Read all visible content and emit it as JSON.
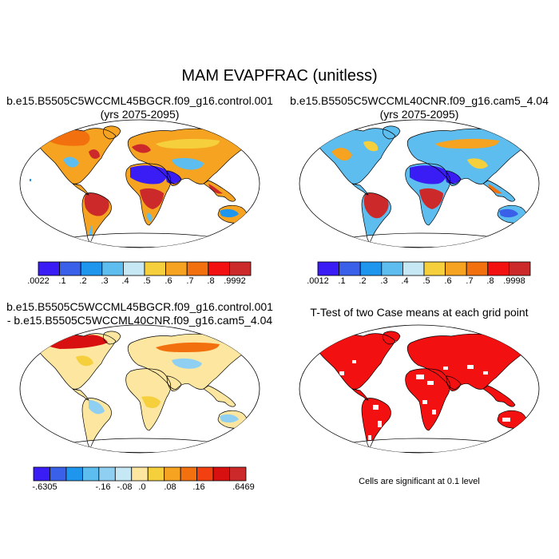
{
  "title": "MAM EVAPFRAC (unitless)",
  "panels": [
    {
      "title_line1": "b.e15.B5505C5WCCML45BGCR.f09_g16.control.001",
      "title_line2": "(yrs 2075-2095)",
      "colorbar": {
        "colors": [
          "#3a1cf4",
          "#3a5fe8",
          "#1e96ee",
          "#5cbdee",
          "#c5e8f4",
          "#f5cf3c",
          "#f5a321",
          "#f2710e",
          "#f21010",
          "#cc2a2a"
        ],
        "labels": [
          ".0022",
          ".1",
          ".2",
          ".3",
          ".4",
          ".5",
          ".6",
          ".7",
          ".8",
          ".9992"
        ]
      }
    },
    {
      "title_line1": "b.e15.B5505C5WCCML40CNR.f09_g16.cam5_4.04",
      "title_line2": "(yrs 2075-2095)",
      "colorbar": {
        "colors": [
          "#3a1cf4",
          "#3a5fe8",
          "#1e96ee",
          "#5cbdee",
          "#c5e8f4",
          "#f5cf3c",
          "#f5a321",
          "#f2710e",
          "#f21010",
          "#cc2a2a"
        ],
        "labels": [
          ".0012",
          ".1",
          ".2",
          ".3",
          ".4",
          ".5",
          ".6",
          ".7",
          ".8",
          ".9998"
        ]
      }
    },
    {
      "title_line1": "b.e15.B5505C5WCCML45BGCR.f09_g16.control.001",
      "title_line2": "- b.e15.B5505C5WCCML40CNR.f09_g16.cam5_4.04",
      "colorbar": {
        "colors": [
          "#3a1cf4",
          "#3a5fe8",
          "#1e96ee",
          "#5cbdee",
          "#8fd0f2",
          "#c5e8f4",
          "#fde7a0",
          "#f5cf3c",
          "#f5a321",
          "#f2710e",
          "#f24010",
          "#d81010",
          "#cc2a2a"
        ],
        "labels": [
          "-.6305",
          "-.16",
          "-.08",
          ".0",
          ".08",
          ".16",
          ".6469"
        ]
      }
    },
    {
      "title_line1": "T-Test of two Case means at each grid point",
      "note": "Cells are significant at 0.1 level"
    }
  ],
  "map_colors": {
    "ocean": "#ffffff",
    "desert": "#3a1cf4",
    "humid": "#cc2a2a",
    "significant": "#f21010"
  }
}
